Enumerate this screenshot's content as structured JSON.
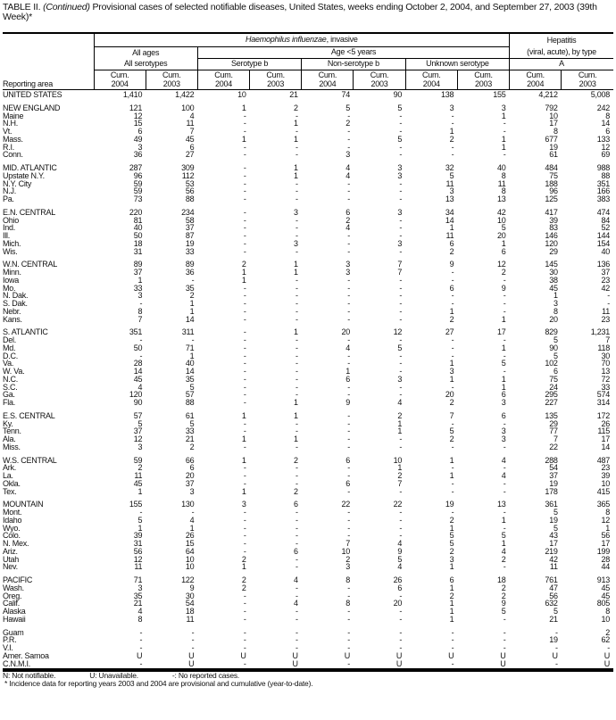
{
  "title": {
    "prefix": "TABLE II. ",
    "continued": "(Continued)",
    "text": " Provisional cases of selected notifiable diseases, United States, weeks ending October 2, 2004, and September 27, 2003 (39th Week)*"
  },
  "header": {
    "reporting_area": "Reporting area",
    "haemophilus": "Haemophilus influenzae",
    "haemophilus_suffix": ", invasive",
    "hepatitis": "Hepatitis",
    "hepatitis_sub": "(viral, acute), by type",
    "all_ages": "All ages",
    "age_under5": "Age <5 years",
    "all_serotypes": "All serotypes",
    "serotype_b": "Serotype b",
    "non_serotype_b": "Non-serotype b",
    "unknown_serotype": "Unknown serotype",
    "type_a": "A",
    "cum": "Cum.",
    "years": [
      "2004",
      "2003",
      "2004",
      "2003",
      "2004",
      "2003",
      "2004",
      "2003",
      "2004",
      "2003"
    ]
  },
  "sections": [
    [
      [
        "UNITED STATES",
        "1,410",
        "1,422",
        "10",
        "21",
        "74",
        "90",
        "138",
        "155",
        "4,212",
        "5,008"
      ]
    ],
    [
      [
        "NEW ENGLAND",
        "121",
        "100",
        "1",
        "2",
        "5",
        "5",
        "3",
        "3",
        "792",
        "242"
      ],
      [
        "Maine",
        "12",
        "4",
        "-",
        "-",
        "-",
        "-",
        "-",
        "1",
        "10",
        "8"
      ],
      [
        "N.H.",
        "15",
        "11",
        "-",
        "1",
        "2",
        "-",
        "-",
        "-",
        "17",
        "14"
      ],
      [
        "Vt.",
        "6",
        "7",
        "-",
        "-",
        "-",
        "-",
        "1",
        "-",
        "8",
        "6"
      ],
      [
        "Mass.",
        "49",
        "45",
        "1",
        "1",
        "-",
        "5",
        "2",
        "1",
        "677",
        "133"
      ],
      [
        "R.I.",
        "3",
        "6",
        "-",
        "-",
        "-",
        "-",
        "-",
        "1",
        "19",
        "12"
      ],
      [
        "Conn.",
        "36",
        "27",
        "-",
        "-",
        "3",
        "-",
        "-",
        "-",
        "61",
        "69"
      ]
    ],
    [
      [
        "MID. ATLANTIC",
        "287",
        "309",
        "-",
        "1",
        "4",
        "3",
        "32",
        "40",
        "484",
        "988"
      ],
      [
        "Upstate N.Y.",
        "96",
        "112",
        "-",
        "1",
        "4",
        "3",
        "5",
        "8",
        "75",
        "88"
      ],
      [
        "N.Y. City",
        "59",
        "53",
        "-",
        "-",
        "-",
        "-",
        "11",
        "11",
        "188",
        "351"
      ],
      [
        "N.J.",
        "59",
        "56",
        "-",
        "-",
        "-",
        "-",
        "3",
        "8",
        "96",
        "166"
      ],
      [
        "Pa.",
        "73",
        "88",
        "-",
        "-",
        "-",
        "-",
        "13",
        "13",
        "125",
        "383"
      ]
    ],
    [
      [
        "E.N. CENTRAL",
        "220",
        "234",
        "-",
        "3",
        "6",
        "3",
        "34",
        "42",
        "417",
        "474"
      ],
      [
        "Ohio",
        "81",
        "58",
        "-",
        "-",
        "2",
        "-",
        "14",
        "10",
        "39",
        "84"
      ],
      [
        "Ind.",
        "40",
        "37",
        "-",
        "-",
        "4",
        "-",
        "1",
        "5",
        "83",
        "52"
      ],
      [
        "Ill.",
        "50",
        "87",
        "-",
        "-",
        "-",
        "-",
        "11",
        "20",
        "146",
        "144"
      ],
      [
        "Mich.",
        "18",
        "19",
        "-",
        "3",
        "-",
        "3",
        "6",
        "1",
        "120",
        "154"
      ],
      [
        "Wis.",
        "31",
        "33",
        "-",
        "-",
        "-",
        "-",
        "2",
        "6",
        "29",
        "40"
      ]
    ],
    [
      [
        "W.N. CENTRAL",
        "89",
        "89",
        "2",
        "1",
        "3",
        "7",
        "9",
        "12",
        "145",
        "136"
      ],
      [
        "Minn.",
        "37",
        "36",
        "1",
        "1",
        "3",
        "7",
        "-",
        "2",
        "30",
        "37"
      ],
      [
        "Iowa",
        "1",
        "-",
        "1",
        "-",
        "-",
        "-",
        "-",
        "-",
        "38",
        "23"
      ],
      [
        "Mo.",
        "33",
        "35",
        "-",
        "-",
        "-",
        "-",
        "6",
        "9",
        "45",
        "42"
      ],
      [
        "N. Dak.",
        "3",
        "2",
        "-",
        "-",
        "-",
        "-",
        "-",
        "-",
        "1",
        "-"
      ],
      [
        "S. Dak.",
        "-",
        "1",
        "-",
        "-",
        "-",
        "-",
        "-",
        "-",
        "3",
        "-"
      ],
      [
        "Nebr.",
        "8",
        "1",
        "-",
        "-",
        "-",
        "-",
        "1",
        "-",
        "8",
        "11"
      ],
      [
        "Kans.",
        "7",
        "14",
        "-",
        "-",
        "-",
        "-",
        "2",
        "1",
        "20",
        "23"
      ]
    ],
    [
      [
        "S. ATLANTIC",
        "351",
        "311",
        "-",
        "1",
        "20",
        "12",
        "27",
        "17",
        "829",
        "1,231"
      ],
      [
        "Del.",
        "-",
        "-",
        "-",
        "-",
        "-",
        "-",
        "-",
        "-",
        "5",
        "7"
      ],
      [
        "Md.",
        "50",
        "71",
        "-",
        "-",
        "4",
        "5",
        "-",
        "1",
        "90",
        "118"
      ],
      [
        "D.C.",
        "-",
        "1",
        "-",
        "-",
        "-",
        "-",
        "-",
        "-",
        "5",
        "30"
      ],
      [
        "Va.",
        "28",
        "40",
        "-",
        "-",
        "-",
        "-",
        "1",
        "5",
        "102",
        "70"
      ],
      [
        "W. Va.",
        "14",
        "14",
        "-",
        "-",
        "1",
        "-",
        "3",
        "-",
        "6",
        "13"
      ],
      [
        "N.C.",
        "45",
        "35",
        "-",
        "-",
        "6",
        "3",
        "1",
        "1",
        "75",
        "72"
      ],
      [
        "S.C.",
        "4",
        "5",
        "-",
        "-",
        "-",
        "-",
        "-",
        "1",
        "24",
        "33"
      ],
      [
        "Ga.",
        "120",
        "57",
        "-",
        "-",
        "-",
        "-",
        "20",
        "6",
        "295",
        "574"
      ],
      [
        "Fla.",
        "90",
        "88",
        "-",
        "1",
        "9",
        "4",
        "2",
        "3",
        "227",
        "314"
      ]
    ],
    [
      [
        "E.S. CENTRAL",
        "57",
        "61",
        "1",
        "1",
        "-",
        "2",
        "7",
        "6",
        "135",
        "172"
      ],
      [
        "Ky.",
        "5",
        "5",
        "-",
        "-",
        "-",
        "1",
        "-",
        "-",
        "29",
        "26"
      ],
      [
        "Tenn.",
        "37",
        "33",
        "-",
        "-",
        "-",
        "1",
        "5",
        "3",
        "77",
        "115"
      ],
      [
        "Ala.",
        "12",
        "21",
        "1",
        "1",
        "-",
        "-",
        "2",
        "3",
        "7",
        "17"
      ],
      [
        "Miss.",
        "3",
        "2",
        "-",
        "-",
        "-",
        "-",
        "-",
        "-",
        "22",
        "14"
      ]
    ],
    [
      [
        "W.S. CENTRAL",
        "59",
        "66",
        "1",
        "2",
        "6",
        "10",
        "1",
        "4",
        "288",
        "487"
      ],
      [
        "Ark.",
        "2",
        "6",
        "-",
        "-",
        "-",
        "1",
        "-",
        "-",
        "54",
        "23"
      ],
      [
        "La.",
        "11",
        "20",
        "-",
        "-",
        "-",
        "2",
        "1",
        "4",
        "37",
        "39"
      ],
      [
        "Okla.",
        "45",
        "37",
        "-",
        "-",
        "6",
        "7",
        "-",
        "-",
        "19",
        "10"
      ],
      [
        "Tex.",
        "1",
        "3",
        "1",
        "2",
        "-",
        "-",
        "-",
        "-",
        "178",
        "415"
      ]
    ],
    [
      [
        "MOUNTAIN",
        "155",
        "130",
        "3",
        "6",
        "22",
        "22",
        "19",
        "13",
        "361",
        "365"
      ],
      [
        "Mont.",
        "-",
        "-",
        "-",
        "-",
        "-",
        "-",
        "-",
        "-",
        "5",
        "8"
      ],
      [
        "Idaho",
        "5",
        "4",
        "-",
        "-",
        "-",
        "-",
        "2",
        "1",
        "19",
        "12"
      ],
      [
        "Wyo.",
        "1",
        "1",
        "-",
        "-",
        "-",
        "-",
        "1",
        "-",
        "5",
        "1"
      ],
      [
        "Colo.",
        "39",
        "26",
        "-",
        "-",
        "-",
        "-",
        "5",
        "5",
        "43",
        "56"
      ],
      [
        "N. Mex.",
        "31",
        "15",
        "-",
        "-",
        "7",
        "4",
        "5",
        "1",
        "17",
        "17"
      ],
      [
        "Ariz.",
        "56",
        "64",
        "-",
        "6",
        "10",
        "9",
        "2",
        "4",
        "219",
        "199"
      ],
      [
        "Utah",
        "12",
        "10",
        "2",
        "-",
        "2",
        "5",
        "3",
        "2",
        "42",
        "28"
      ],
      [
        "Nev.",
        "11",
        "10",
        "1",
        "-",
        "3",
        "4",
        "1",
        "-",
        "11",
        "44"
      ]
    ],
    [
      [
        "PACIFIC",
        "71",
        "122",
        "2",
        "4",
        "8",
        "26",
        "6",
        "18",
        "761",
        "913"
      ],
      [
        "Wash.",
        "3",
        "9",
        "2",
        "-",
        "-",
        "6",
        "1",
        "2",
        "47",
        "45"
      ],
      [
        "Oreg.",
        "35",
        "30",
        "-",
        "-",
        "-",
        "-",
        "2",
        "2",
        "56",
        "45"
      ],
      [
        "Calif.",
        "21",
        "54",
        "-",
        "4",
        "8",
        "20",
        "1",
        "9",
        "632",
        "805"
      ],
      [
        "Alaska",
        "4",
        "18",
        "-",
        "-",
        "-",
        "-",
        "1",
        "5",
        "5",
        "8"
      ],
      [
        "Hawaii",
        "8",
        "11",
        "-",
        "-",
        "-",
        "-",
        "1",
        "-",
        "21",
        "10"
      ]
    ],
    [
      [
        "Guam",
        "-",
        "-",
        "-",
        "-",
        "-",
        "-",
        "-",
        "-",
        "-",
        "2"
      ],
      [
        "P.R.",
        "-",
        "-",
        "-",
        "-",
        "-",
        "-",
        "-",
        "-",
        "19",
        "62"
      ],
      [
        "V.I.",
        "-",
        "-",
        "-",
        "-",
        "-",
        "-",
        "-",
        "-",
        "-",
        "-"
      ],
      [
        "Amer. Samoa",
        "U",
        "U",
        "U",
        "U",
        "U",
        "U",
        "U",
        "U",
        "U",
        "U"
      ],
      [
        "C.N.M.I.",
        "-",
        "U",
        "-",
        "U",
        "-",
        "U",
        "-",
        "U",
        "-",
        "U"
      ]
    ]
  ],
  "footnotes": {
    "n": "N: Not notifiable.",
    "u": "U: Unavailable.",
    "dash": "-: No reported cases.",
    "star": "* Incidence data for reporting years 2003 and 2004 are provisional and cumulative (year-to-date)."
  }
}
